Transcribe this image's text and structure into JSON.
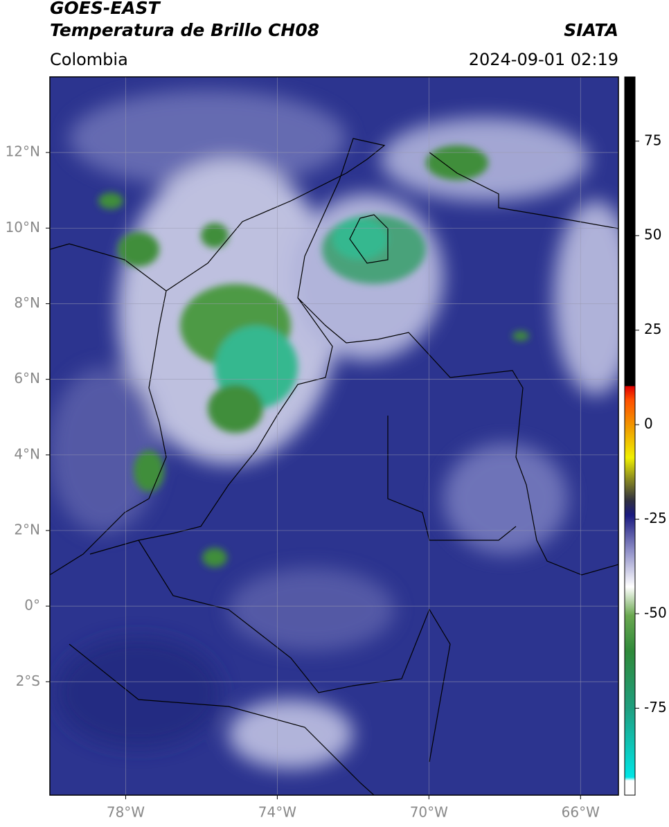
{
  "header": {
    "title": "GOES-EAST",
    "subtitle": "Temperatura de Brillo CH08",
    "source": "SIATA",
    "region": "Colombia",
    "datetime": "2024-09-01 02:19"
  },
  "map": {
    "xlim": [
      -80,
      -65
    ],
    "ylim": [
      -5,
      14
    ],
    "xticks": [
      {
        "value": -78,
        "label": "78°W"
      },
      {
        "value": -74,
        "label": "74°W"
      },
      {
        "value": -70,
        "label": "70°W"
      },
      {
        "value": -66,
        "label": "66°W"
      }
    ],
    "yticks": [
      {
        "value": 12,
        "label": "12°N"
      },
      {
        "value": 10,
        "label": "10°N"
      },
      {
        "value": 8,
        "label": "8°N"
      },
      {
        "value": 6,
        "label": "6°N"
      },
      {
        "value": 4,
        "label": "4°N"
      },
      {
        "value": 2,
        "label": "2°N"
      },
      {
        "value": 0,
        "label": "0°"
      },
      {
        "value": -2,
        "label": "2°S"
      }
    ],
    "grid": true
  },
  "colorbar": {
    "lim": [
      -98,
      92
    ],
    "ticks": [
      75,
      50,
      25,
      0,
      -25,
      -50,
      -75
    ]
  }
}
